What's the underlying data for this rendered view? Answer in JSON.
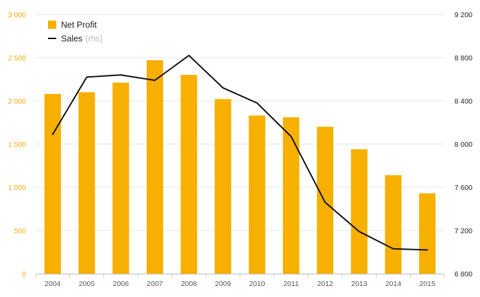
{
  "chart_data": {
    "type": "bar",
    "title": "",
    "xlabel": "",
    "categories": [
      "2004",
      "2005",
      "2006",
      "2007",
      "2008",
      "2009",
      "2010",
      "2011",
      "2012",
      "2013",
      "2014",
      "2015"
    ],
    "series": [
      {
        "name": "Net Profit",
        "type": "bar",
        "axis": "left",
        "color": "#f7b000",
        "values": [
          2080,
          2100,
          2210,
          2470,
          2300,
          2020,
          1830,
          1810,
          1700,
          1440,
          1140,
          930
        ]
      },
      {
        "name": "Sales",
        "type": "line",
        "axis": "right",
        "color": "#111111",
        "values": [
          8090,
          8620,
          8640,
          8590,
          8820,
          8520,
          8380,
          8070,
          7460,
          7190,
          7030,
          7020
        ]
      }
    ],
    "y_left": {
      "lim": [
        0,
        3000
      ],
      "ticks": [
        0,
        500,
        1000,
        1500,
        2000,
        2500,
        3000
      ],
      "tick_labels": [
        "0",
        "500",
        "1 000",
        "1 500",
        "2 000",
        "2 500",
        "3 000"
      ],
      "color": "#f0ab00"
    },
    "y_right": {
      "lim": [
        6800,
        9200
      ],
      "ticks": [
        6800,
        7200,
        7600,
        8000,
        8400,
        8800,
        9200
      ],
      "tick_labels": [
        "6 800",
        "7 200",
        "7 600",
        "8 000",
        "8 400",
        "8 800",
        "9 200"
      ],
      "color": "#222222"
    },
    "grid": true,
    "legend": {
      "position": "top-left",
      "items": [
        {
          "label": "Net Profit",
          "suffix": "",
          "marker": "square",
          "color": "#f7b000"
        },
        {
          "label": "Sales",
          "suffix": "(rhs)",
          "marker": "line",
          "color": "#111111"
        }
      ]
    }
  }
}
